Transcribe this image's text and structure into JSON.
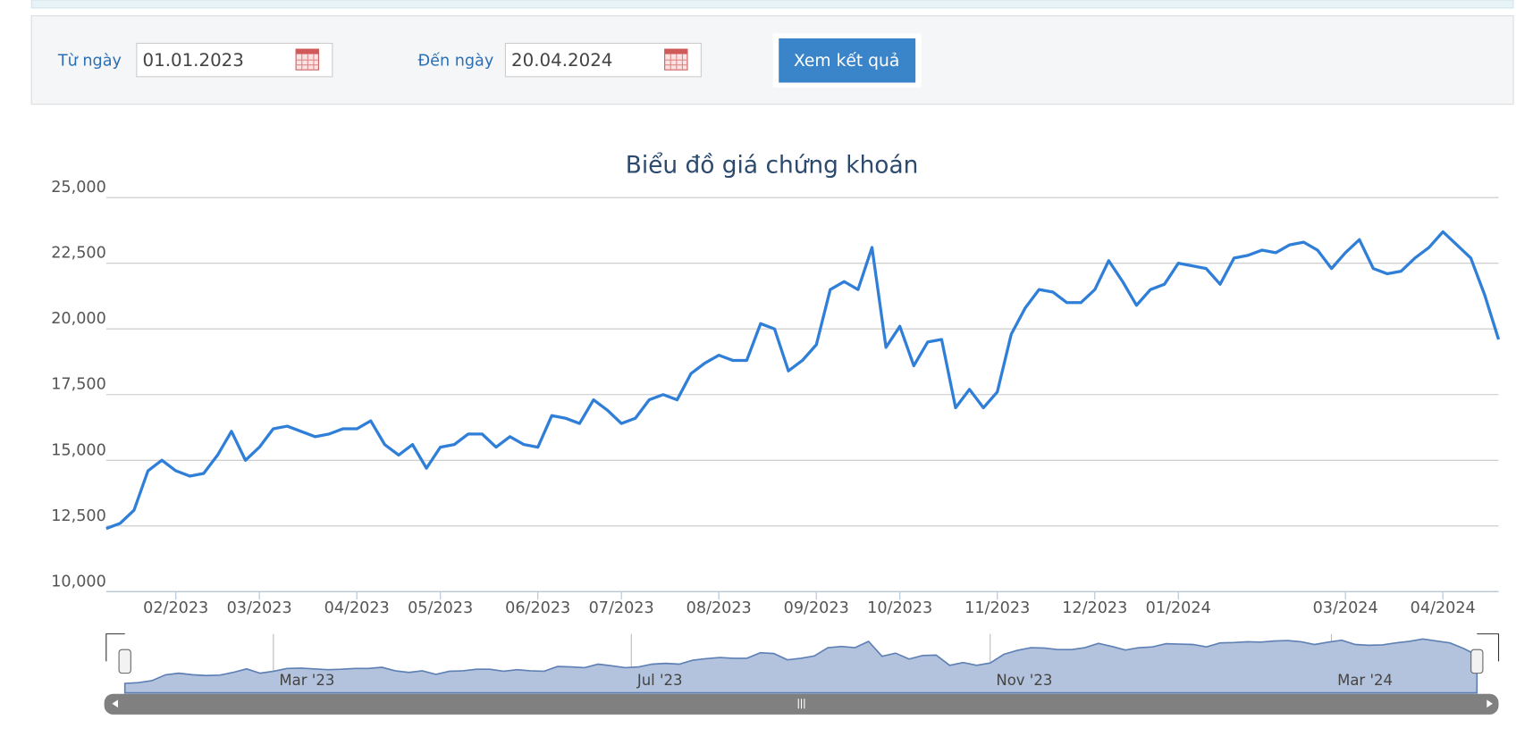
{
  "form": {
    "from_label": "Từ ngày",
    "from_value": "01.01.2023",
    "to_label": "Đến ngày",
    "to_value": "20.04.2024",
    "submit": "Xem kết quả"
  },
  "chart_data": {
    "type": "line",
    "title": "Biểu đồ giá chứng khoán",
    "color": "#2f7ed8",
    "grid": true,
    "categories": [
      null,
      null,
      null,
      null,
      null,
      "02/2023",
      null,
      null,
      null,
      null,
      null,
      "03/2023",
      null,
      null,
      null,
      null,
      null,
      null,
      "04/2023",
      null,
      null,
      null,
      null,
      null,
      "05/2023",
      null,
      null,
      null,
      null,
      null,
      null,
      "06/2023",
      null,
      null,
      null,
      null,
      null,
      "07/2023",
      null,
      null,
      null,
      null,
      null,
      null,
      "08/2023",
      null,
      null,
      null,
      null,
      null,
      null,
      "09/2023",
      null,
      null,
      null,
      null,
      null,
      "10/2023",
      null,
      null,
      null,
      null,
      null,
      null,
      "11/2023",
      null,
      null,
      null,
      null,
      null,
      null,
      "12/2023",
      null,
      null,
      null,
      null,
      null,
      "01/2024",
      null,
      null,
      null,
      null,
      null,
      null,
      null,
      null,
      null,
      null,
      null,
      "03/2024",
      null,
      null,
      null,
      null,
      null,
      null,
      "04/2024",
      null,
      null,
      null,
      null
    ],
    "values": [
      12400,
      12600,
      13100,
      14600,
      15000,
      14600,
      14400,
      14500,
      15200,
      16100,
      15000,
      15500,
      16200,
      16300,
      16100,
      15900,
      16000,
      16200,
      16200,
      16500,
      15600,
      15200,
      15600,
      14700,
      15500,
      15600,
      16000,
      16000,
      15500,
      15900,
      15600,
      15500,
      16700,
      16600,
      16400,
      17300,
      16900,
      16400,
      16600,
      17300,
      17500,
      17300,
      18300,
      18700,
      19000,
      18800,
      18800,
      20200,
      20000,
      18400,
      18800,
      19400,
      21500,
      21800,
      21500,
      23100,
      19300,
      20100,
      18600,
      19500,
      19600,
      17000,
      17700,
      17000,
      17600,
      19800,
      20800,
      21500,
      21400,
      21000,
      21000,
      21500,
      22600,
      21800,
      20900,
      21500,
      21700,
      22500,
      22400,
      22300,
      21700,
      22700,
      22800,
      23000,
      22900,
      23200,
      23300,
      23000,
      22300,
      22900,
      23400,
      22300,
      22100,
      22200,
      22700,
      23100,
      23700,
      23200,
      22700,
      21300,
      19600
    ],
    "ylim": [
      10000,
      25000
    ],
    "yticks": [
      {
        "value": 10000,
        "label": "10,000"
      },
      {
        "value": 12500,
        "label": "12,500"
      },
      {
        "value": 15000,
        "label": "15,000"
      },
      {
        "value": 17500,
        "label": "17,500"
      },
      {
        "value": 20000,
        "label": "20,000"
      },
      {
        "value": 22500,
        "label": "22,500"
      },
      {
        "value": 25000,
        "label": "25,000"
      }
    ]
  },
  "navigator": {
    "labels": [
      "Mar '23",
      "Jul '23",
      "Nov '23",
      "Mar '24"
    ]
  }
}
